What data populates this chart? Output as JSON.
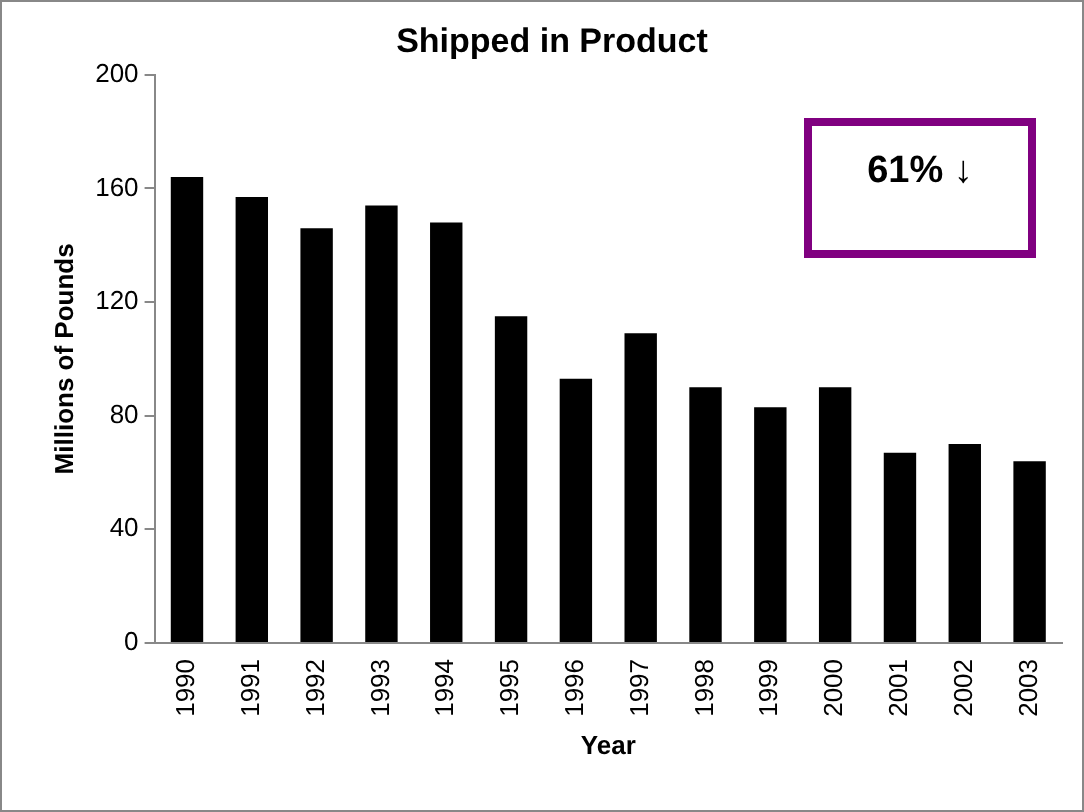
{
  "chart_data": {
    "type": "bar",
    "title": "Shipped in Product",
    "xlabel": "Year",
    "ylabel": "Millions of Pounds",
    "categories": [
      "1990",
      "1991",
      "1992",
      "1993",
      "1994",
      "1995",
      "1996",
      "1997",
      "1998",
      "1999",
      "2000",
      "2001",
      "2002",
      "2003"
    ],
    "values": [
      164,
      157,
      146,
      154,
      148,
      115,
      93,
      109,
      90,
      83,
      90,
      67,
      70,
      64
    ],
    "color": "#000000",
    "ylim": [
      0,
      200
    ],
    "yticks": [
      0,
      40,
      80,
      120,
      160,
      200
    ],
    "grid": false,
    "legend": false,
    "annotations": [
      "61% ↓"
    ]
  }
}
